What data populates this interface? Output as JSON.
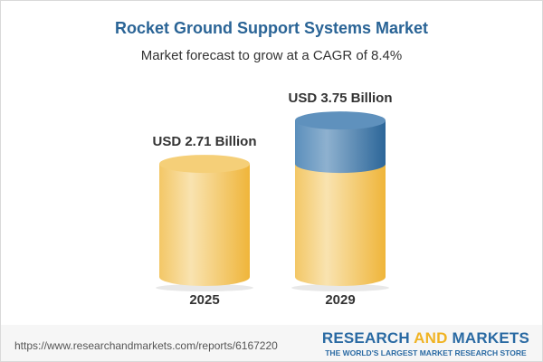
{
  "title": "Rocket Ground Support Systems Market",
  "subtitle": "Market forecast to grow at a CAGR of 8.4%",
  "chart_data": {
    "type": "bar",
    "categories": [
      "2025",
      "2029"
    ],
    "values": [
      2.71,
      3.75
    ],
    "data_labels": [
      "USD 2.71 Billion",
      "USD 3.75 Billion"
    ],
    "unit": "USD Billion",
    "colors": {
      "base": "#f2c45a",
      "growth": "#4f86b5"
    }
  },
  "footer": {
    "url": "https://www.researchandmarkets.com/reports/6167220",
    "logo_part1": "RESEARCH ",
    "logo_part2": "AND",
    "logo_part3": " MARKETS",
    "tagline": "THE WORLD'S LARGEST MARKET RESEARCH STORE"
  }
}
